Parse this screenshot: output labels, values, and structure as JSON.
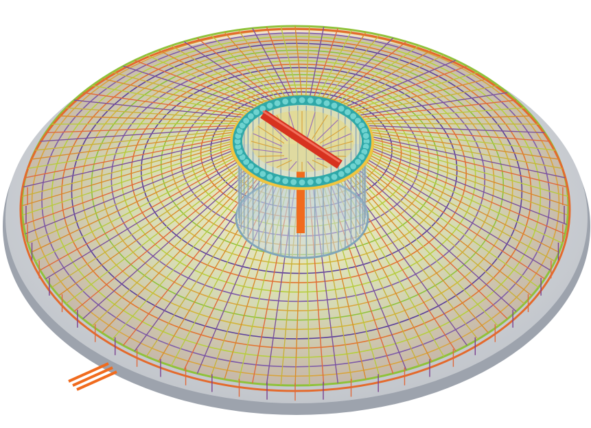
{
  "scene": {
    "subject": "circular-rebar-foundation-render",
    "radial_bar_count": 120,
    "ring_count": 22,
    "inner_post_count": 46,
    "colors": {
      "background": "#ffffff",
      "slab_top": "#c9cbd0",
      "slab_edge": "#9da3ad",
      "radial_colors": [
        "#d98a2b",
        "#c8b23a",
        "#7a4f9c",
        "#e0683a",
        "#b8c93e"
      ],
      "ring_colors": [
        "#8fc23a",
        "#d3b537",
        "#5a3f9a",
        "#e2742f",
        "#b6cf3d",
        "#7d5aa8",
        "#d9a43c"
      ],
      "outer_ring": "#e46a2c",
      "hub_ring_teal": "#2fa8a8",
      "hub_ring_yellow": "#f0c541",
      "hub_beam": "#d7321f",
      "core_post": "#8aa6b8",
      "spout": "#f06b1e"
    }
  }
}
